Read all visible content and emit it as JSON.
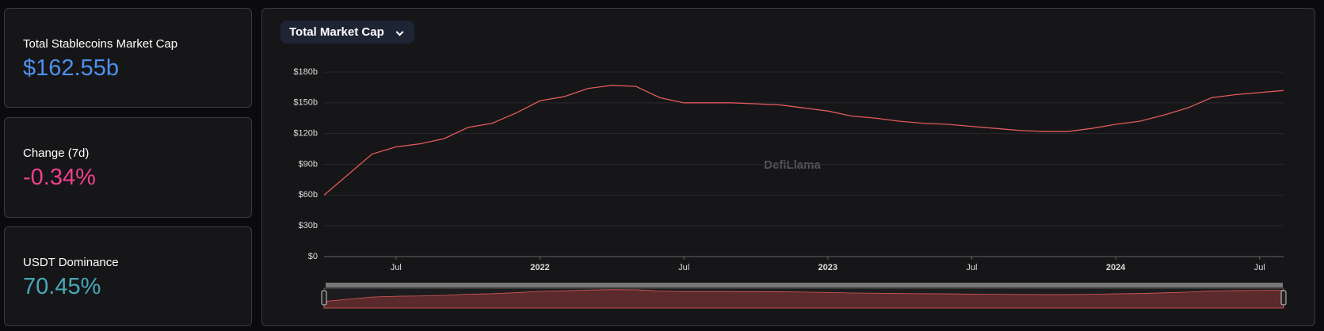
{
  "cards": [
    {
      "label": "Total Stablecoins Market Cap",
      "value": "$162.55b",
      "color": "#4d91ee"
    },
    {
      "label": "Change (7d)",
      "value": "-0.34%",
      "color": "#f0408f"
    },
    {
      "label": "USDT Dominance",
      "value": "70.45%",
      "color": "#47a8b8"
    }
  ],
  "dropdown": {
    "label": "Total Market Cap"
  },
  "watermark": "DefiLlama",
  "chart_data": {
    "type": "line",
    "color": "#e05a5a",
    "x": [
      "2021-04",
      "2021-05",
      "2021-06",
      "2021-07",
      "2021-08",
      "2021-09",
      "2021-10",
      "2021-11",
      "2021-12",
      "2022-01",
      "2022-02",
      "2022-03",
      "2022-04",
      "2022-05",
      "2022-06",
      "2022-07",
      "2022-08",
      "2022-09",
      "2022-10",
      "2022-11",
      "2022-12",
      "2023-01",
      "2023-02",
      "2023-03",
      "2023-04",
      "2023-05",
      "2023-06",
      "2023-07",
      "2023-08",
      "2023-09",
      "2023-10",
      "2023-11",
      "2023-12",
      "2024-01",
      "2024-02",
      "2024-03",
      "2024-04",
      "2024-05",
      "2024-06",
      "2024-07",
      "2024-08"
    ],
    "values": [
      60,
      80,
      100,
      107,
      110,
      115,
      126,
      130,
      140,
      152,
      156,
      164,
      167,
      166,
      155,
      150,
      150,
      150,
      149,
      148,
      145,
      142,
      137,
      135,
      132,
      130,
      129,
      127,
      125,
      123,
      122,
      122,
      125,
      129,
      132,
      138,
      145,
      155,
      158,
      160,
      162
    ],
    "xlim": [
      "2021-04",
      "2024-08"
    ],
    "xticks": [
      {
        "value": "2021-07",
        "label": "Jul"
      },
      {
        "value": "2022-01",
        "label": "2022"
      },
      {
        "value": "2022-07",
        "label": "Jul"
      },
      {
        "value": "2023-01",
        "label": "2023"
      },
      {
        "value": "2023-07",
        "label": "Jul"
      },
      {
        "value": "2024-01",
        "label": "2024"
      },
      {
        "value": "2024-07",
        "label": "Jul"
      }
    ],
    "ylim": [
      0,
      180
    ],
    "yticks": [
      {
        "value": 0,
        "label": "$0"
      },
      {
        "value": 30,
        "label": "$30b"
      },
      {
        "value": 60,
        "label": "$60b"
      },
      {
        "value": 90,
        "label": "$90b"
      },
      {
        "value": 120,
        "label": "$120b"
      },
      {
        "value": 150,
        "label": "$150b"
      },
      {
        "value": 180,
        "label": "$180b"
      }
    ],
    "grid": true
  }
}
